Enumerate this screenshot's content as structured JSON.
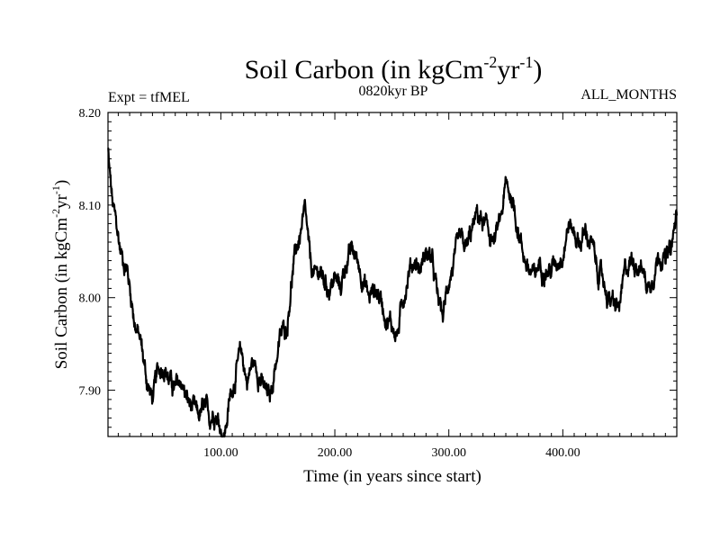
{
  "chart_data": {
    "type": "line",
    "title": "Soil Carbon (in kgCm",
    "title_sup1": "-2",
    "title_mid": "yr",
    "title_sup2": "-1",
    "title_end": ")",
    "subtitle_left": "Expt = tfMEL",
    "subtitle_center": "0820kyr BP",
    "subtitle_right": "ALL_MONTHS",
    "xlabel": "Time (in years since start)",
    "ylabel": "Soil Carbon (in kgCm",
    "ylabel_sup1": "-2",
    "ylabel_mid": "yr",
    "ylabel_sup2": "-1",
    "ylabel_end": ")",
    "xlim": [
      1,
      500
    ],
    "ylim": [
      7.85,
      8.2
    ],
    "x_ticks": [
      {
        "value": 100,
        "label": "100.00"
      },
      {
        "value": 200,
        "label": "200.00"
      },
      {
        "value": 300,
        "label": "300.00"
      },
      {
        "value": 400,
        "label": "400.00"
      }
    ],
    "y_ticks": [
      {
        "value": 7.9,
        "label": "7.90"
      },
      {
        "value": 8.0,
        "label": "8.00"
      },
      {
        "value": 8.1,
        "label": "8.10"
      },
      {
        "value": 8.2,
        "label": "8.20"
      }
    ],
    "series": [
      {
        "name": "Soil Carbon",
        "color": "#000000",
        "x": [
          1,
          2,
          5,
          8,
          12,
          18,
          25,
          30,
          35,
          40,
          45,
          50,
          55,
          60,
          65,
          70,
          75,
          80,
          85,
          90,
          95,
          100,
          103,
          108,
          113,
          118,
          123,
          128,
          133,
          138,
          143,
          148,
          153,
          158,
          162,
          166,
          170,
          174,
          178,
          182,
          186,
          190,
          195,
          200,
          205,
          210,
          215,
          220,
          225,
          230,
          235,
          240,
          245,
          250,
          255,
          260,
          265,
          270,
          275,
          280,
          285,
          290,
          295,
          300,
          305,
          310,
          315,
          320,
          325,
          330,
          335,
          340,
          345,
          350,
          355,
          360,
          365,
          370,
          375,
          380,
          385,
          390,
          395,
          400,
          405,
          410,
          415,
          420,
          425,
          430,
          435,
          440,
          445,
          450,
          455,
          460,
          465,
          470,
          475,
          480,
          485,
          490,
          495,
          500
        ],
        "values": [
          8.16,
          8.14,
          8.1,
          8.08,
          8.05,
          8.03,
          7.97,
          7.95,
          7.91,
          7.89,
          7.92,
          7.93,
          7.91,
          7.9,
          7.91,
          7.89,
          7.88,
          7.87,
          7.88,
          7.87,
          7.88,
          7.86,
          7.85,
          7.89,
          7.92,
          7.94,
          7.91,
          7.93,
          7.92,
          7.9,
          7.89,
          7.93,
          7.96,
          7.97,
          8.02,
          8.05,
          8.07,
          8.09,
          8.04,
          8.02,
          8.03,
          8.02,
          8.01,
          8.02,
          8.01,
          8.04,
          8.05,
          8.04,
          8.02,
          8.0,
          8.01,
          8.0,
          7.98,
          7.97,
          7.96,
          8.0,
          8.03,
          8.04,
          8.03,
          8.05,
          8.04,
          8.0,
          7.98,
          8.02,
          8.04,
          8.06,
          8.05,
          8.07,
          8.09,
          8.08,
          8.07,
          8.06,
          8.08,
          8.12,
          8.11,
          8.08,
          8.05,
          8.03,
          8.02,
          8.04,
          8.03,
          8.03,
          8.04,
          8.05,
          8.08,
          8.07,
          8.06,
          8.07,
          8.06,
          8.03,
          8.02,
          8.0,
          7.99,
          7.99,
          8.03,
          8.04,
          8.04,
          8.03,
          8.01,
          8.03,
          8.05,
          8.04,
          8.05,
          8.09
        ]
      }
    ]
  }
}
